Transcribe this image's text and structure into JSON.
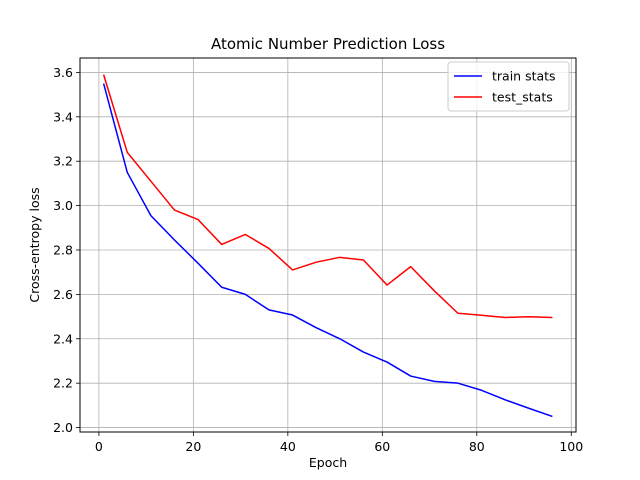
{
  "chart_data": {
    "type": "line",
    "title": "Atomic Number Prediction Loss",
    "xlabel": "Epoch",
    "ylabel": "Cross-entropy loss",
    "xlim": [
      -4,
      101
    ],
    "ylim": [
      1.98,
      3.665
    ],
    "xticks": [
      0,
      20,
      40,
      60,
      80,
      100
    ],
    "yticks": [
      2.0,
      2.2,
      2.4,
      2.6,
      2.8,
      3.0,
      3.2,
      3.4,
      3.6
    ],
    "ytick_labels": [
      "2.0",
      "2.2",
      "2.4",
      "2.6",
      "2.8",
      "3.0",
      "3.2",
      "3.4",
      "3.6"
    ],
    "grid": true,
    "legend_position": "top-right",
    "series": [
      {
        "name": "train stats",
        "color": "#0000ff",
        "x": [
          1,
          6,
          11,
          16,
          21,
          26,
          31,
          36,
          41,
          46,
          51,
          56,
          61,
          66,
          71,
          76,
          81,
          86,
          91,
          96
        ],
        "values": [
          3.55,
          3.15,
          2.955,
          2.845,
          2.74,
          2.632,
          2.6,
          2.53,
          2.507,
          2.45,
          2.4,
          2.34,
          2.295,
          2.232,
          2.208,
          2.2,
          2.168,
          2.125,
          2.087,
          2.05
        ]
      },
      {
        "name": "test_stats",
        "color": "#ff0000",
        "x": [
          1,
          6,
          11,
          16,
          21,
          26,
          31,
          36,
          41,
          46,
          51,
          56,
          61,
          66,
          71,
          76,
          81,
          86,
          91,
          96
        ],
        "values": [
          3.59,
          3.24,
          3.11,
          2.98,
          2.937,
          2.825,
          2.87,
          2.807,
          2.71,
          2.745,
          2.767,
          2.755,
          2.642,
          2.725,
          2.616,
          2.515,
          2.506,
          2.496,
          2.499,
          2.496
        ]
      }
    ]
  }
}
